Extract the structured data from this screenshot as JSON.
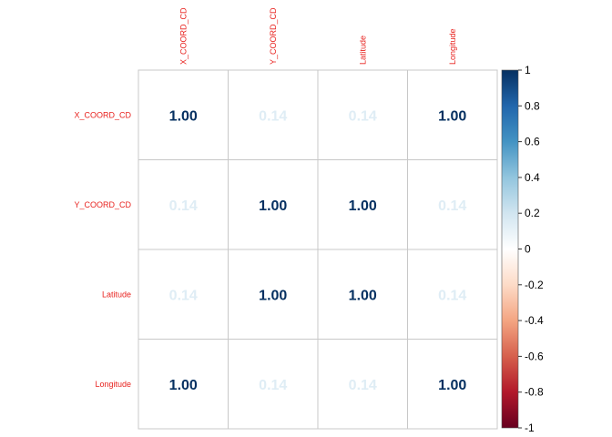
{
  "chart_data": {
    "type": "heatmap",
    "variables": [
      "X_COORD_CD",
      "Y_COORD_CD",
      "Latitude",
      "Longitude"
    ],
    "matrix": [
      [
        1.0,
        0.14,
        0.14,
        1.0
      ],
      [
        0.14,
        1.0,
        1.0,
        0.14
      ],
      [
        0.14,
        1.0,
        1.0,
        0.14
      ],
      [
        1.0,
        0.14,
        0.14,
        1.0
      ]
    ],
    "value_labels": [
      [
        "1.00",
        "0.14",
        "0.14",
        "1.00"
      ],
      [
        "0.14",
        "1.00",
        "1.00",
        "0.14"
      ],
      [
        "0.14",
        "1.00",
        "1.00",
        "0.14"
      ],
      [
        "1.00",
        "0.14",
        "0.14",
        "1.00"
      ]
    ],
    "colorbar": {
      "range": [
        -1,
        1
      ],
      "ticks": [
        1,
        0.8,
        0.6,
        0.4,
        0.2,
        0,
        -0.2,
        -0.4,
        -0.6,
        -0.8,
        -1
      ],
      "tick_labels": [
        "1",
        "0.8",
        "0.6",
        "0.4",
        "0.2",
        "0",
        "-0.2",
        "-0.4",
        "-0.6",
        "-0.8",
        "-1"
      ],
      "placement": "right"
    },
    "label_color": "#e8231f",
    "grid": true
  }
}
